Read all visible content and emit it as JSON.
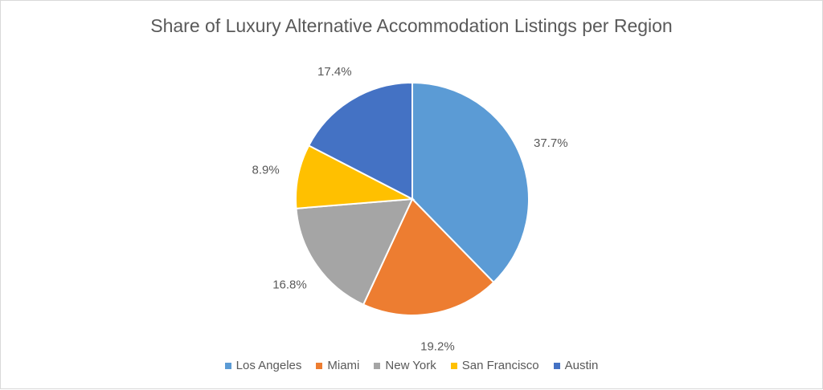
{
  "chart_data": {
    "type": "pie",
    "title": "Share of Luxury Alternative Accommodation Listings per Region",
    "categories": [
      "Los Angeles",
      "Miami",
      "New York",
      "San Francisco",
      "Austin"
    ],
    "values": [
      37.7,
      19.2,
      16.8,
      8.9,
      17.4
    ],
    "labels": [
      "37.7%",
      "19.2%",
      "16.8%",
      "8.9%",
      "17.4%"
    ],
    "colors": [
      "#5b9bd5",
      "#ed7d31",
      "#a5a5a5",
      "#ffc000",
      "#4472c4"
    ],
    "legend_position": "bottom",
    "start": "12 o'clock, clockwise"
  }
}
